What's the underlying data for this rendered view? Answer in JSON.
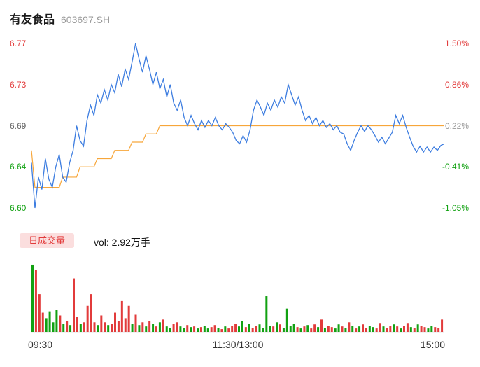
{
  "header": {
    "title": "有友食品",
    "code": "603697.SH"
  },
  "volume_panel": {
    "tab_label": "日成交量",
    "volume_text": "vol: 2.92万手"
  },
  "colors": {
    "up": "#e23b3b",
    "down": "#12a112",
    "neutral": "#999999",
    "price_line": "#3d7de0",
    "avg_line": "#f7a63a",
    "badge_bg": "#fbdede",
    "baseline": "#e6e6e6"
  },
  "chart_data": [
    {
      "type": "line",
      "x_axis_labels": [
        "09:30",
        "11:30/13:00",
        "15:00"
      ],
      "y_axis_left": [
        {
          "text": "6.77",
          "color": "#e23b3b"
        },
        {
          "text": "6.73",
          "color": "#e23b3b"
        },
        {
          "text": "6.69",
          "color": "#666666"
        },
        {
          "text": "6.64",
          "color": "#12a112"
        },
        {
          "text": "6.60",
          "color": "#12a112"
        }
      ],
      "y_axis_right": [
        {
          "text": "1.50%",
          "color": "#e23b3b"
        },
        {
          "text": "0.86%",
          "color": "#e23b3b"
        },
        {
          "text": "0.22%",
          "color": "#999999"
        },
        {
          "text": "-0.41%",
          "color": "#12a112"
        },
        {
          "text": "-1.05%",
          "color": "#12a112"
        }
      ],
      "price_ticks": [
        6.77,
        6.73,
        6.69,
        6.64,
        6.6
      ],
      "ylim": [
        6.6,
        6.77
      ],
      "grid": false,
      "series": [
        {
          "name": "price",
          "color": "#3d7de0",
          "values": [
            6.645,
            6.6,
            6.63,
            6.618,
            6.65,
            6.628,
            6.62,
            6.64,
            6.655,
            6.63,
            6.625,
            6.645,
            6.66,
            6.69,
            6.672,
            6.665,
            6.695,
            6.71,
            6.7,
            6.72,
            6.712,
            6.725,
            6.715,
            6.73,
            6.722,
            6.74,
            6.728,
            6.745,
            6.735,
            6.752,
            6.77,
            6.755,
            6.742,
            6.758,
            6.745,
            6.73,
            6.742,
            6.726,
            6.735,
            6.718,
            6.73,
            6.712,
            6.705,
            6.715,
            6.698,
            6.69,
            6.7,
            6.692,
            6.685,
            6.695,
            6.688,
            6.695,
            6.69,
            6.698,
            6.69,
            6.685,
            6.692,
            6.688,
            6.682,
            6.672,
            6.668,
            6.678,
            6.67,
            6.685,
            6.705,
            6.715,
            6.708,
            6.7,
            6.712,
            6.705,
            6.715,
            6.708,
            6.718,
            6.712,
            6.73,
            6.72,
            6.71,
            6.718,
            6.705,
            6.695,
            6.7,
            6.692,
            6.698,
            6.69,
            6.695,
            6.688,
            6.692,
            6.685,
            6.69,
            6.682,
            6.68,
            6.668,
            6.66,
            6.672,
            6.682,
            6.69,
            6.683,
            6.69,
            6.685,
            6.678,
            6.67,
            6.676,
            6.668,
            6.675,
            6.682,
            6.7,
            6.692,
            6.7,
            6.688,
            6.676,
            6.665,
            6.658,
            6.665,
            6.658,
            6.664,
            6.658,
            6.664,
            6.66,
            6.666,
            6.668
          ]
        },
        {
          "name": "avg",
          "color": "#f7a63a",
          "values": [
            6.66,
            6.62,
            6.62,
            6.62,
            6.62,
            6.62,
            6.62,
            6.62,
            6.62,
            6.63,
            6.63,
            6.63,
            6.63,
            6.63,
            6.64,
            6.64,
            6.64,
            6.64,
            6.64,
            6.65,
            6.65,
            6.65,
            6.65,
            6.65,
            6.66,
            6.66,
            6.66,
            6.66,
            6.66,
            6.67,
            6.67,
            6.67,
            6.67,
            6.68,
            6.68,
            6.68,
            6.68,
            6.69,
            6.69,
            6.69,
            6.69,
            6.69,
            6.69,
            6.69,
            6.69,
            6.69,
            6.69,
            6.69,
            6.69,
            6.69,
            6.69,
            6.69,
            6.69,
            6.69,
            6.69,
            6.69,
            6.69,
            6.69,
            6.69,
            6.69,
            6.69,
            6.69,
            6.69,
            6.69,
            6.69,
            6.69,
            6.69,
            6.69,
            6.69,
            6.69,
            6.69,
            6.69,
            6.69,
            6.69,
            6.69,
            6.69,
            6.69,
            6.69,
            6.69,
            6.69,
            6.69,
            6.69,
            6.69,
            6.69,
            6.69,
            6.69,
            6.69,
            6.69,
            6.69,
            6.69,
            6.69,
            6.69,
            6.69,
            6.69,
            6.69,
            6.69,
            6.69,
            6.69,
            6.69,
            6.69,
            6.69,
            6.69,
            6.69,
            6.69,
            6.69,
            6.69,
            6.69,
            6.69,
            6.69,
            6.69,
            6.69,
            6.69,
            6.69,
            6.69,
            6.69,
            6.69,
            6.69,
            6.69,
            6.69,
            6.69
          ]
        }
      ]
    },
    {
      "type": "bar",
      "name": "volume",
      "values": [
        98,
        90,
        55,
        28,
        20,
        30,
        14,
        32,
        24,
        12,
        16,
        10,
        78,
        22,
        12,
        14,
        38,
        55,
        14,
        10,
        24,
        14,
        10,
        12,
        28,
        16,
        45,
        20,
        38,
        12,
        25,
        10,
        14,
        8,
        16,
        12,
        8,
        14,
        18,
        8,
        6,
        12,
        14,
        8,
        6,
        10,
        7,
        8,
        5,
        7,
        9,
        5,
        7,
        10,
        6,
        4,
        8,
        5,
        9,
        12,
        8,
        16,
        7,
        12,
        6,
        9,
        11,
        6,
        52,
        9,
        8,
        14,
        11,
        6,
        34,
        9,
        12,
        7,
        5,
        8,
        10,
        5,
        11,
        7,
        18,
        6,
        9,
        7,
        5,
        11,
        8,
        6,
        14,
        9,
        5,
        8,
        11,
        6,
        9,
        7,
        5,
        13,
        8,
        6,
        9,
        11,
        8,
        5,
        9,
        13,
        7,
        6,
        11,
        9,
        7,
        5,
        9,
        7,
        6,
        18
      ],
      "directions": [
        "g",
        "r",
        "r",
        "r",
        "g",
        "g",
        "g",
        "g",
        "r",
        "g",
        "r",
        "g",
        "r",
        "r",
        "g",
        "r",
        "r",
        "r",
        "r",
        "g",
        "r",
        "r",
        "g",
        "r",
        "r",
        "r",
        "r",
        "r",
        "r",
        "g",
        "r",
        "g",
        "r",
        "g",
        "r",
        "g",
        "r",
        "g",
        "r",
        "g",
        "g",
        "r",
        "r",
        "g",
        "g",
        "r",
        "g",
        "r",
        "g",
        "r",
        "g",
        "g",
        "r",
        "r",
        "g",
        "r",
        "g",
        "r",
        "r",
        "r",
        "g",
        "g",
        "r",
        "g",
        "r",
        "r",
        "g",
        "g",
        "g",
        "g",
        "r",
        "g",
        "r",
        "g",
        "g",
        "g",
        "g",
        "r",
        "g",
        "r",
        "g",
        "r",
        "r",
        "g",
        "r",
        "g",
        "r",
        "r",
        "g",
        "g",
        "r",
        "g",
        "r",
        "g",
        "r",
        "g",
        "r",
        "r",
        "g",
        "g",
        "r",
        "r",
        "g",
        "r",
        "r",
        "g",
        "r",
        "g",
        "r",
        "r",
        "g",
        "r",
        "g",
        "r",
        "r",
        "g",
        "g",
        "r",
        "r",
        "r"
      ]
    }
  ]
}
